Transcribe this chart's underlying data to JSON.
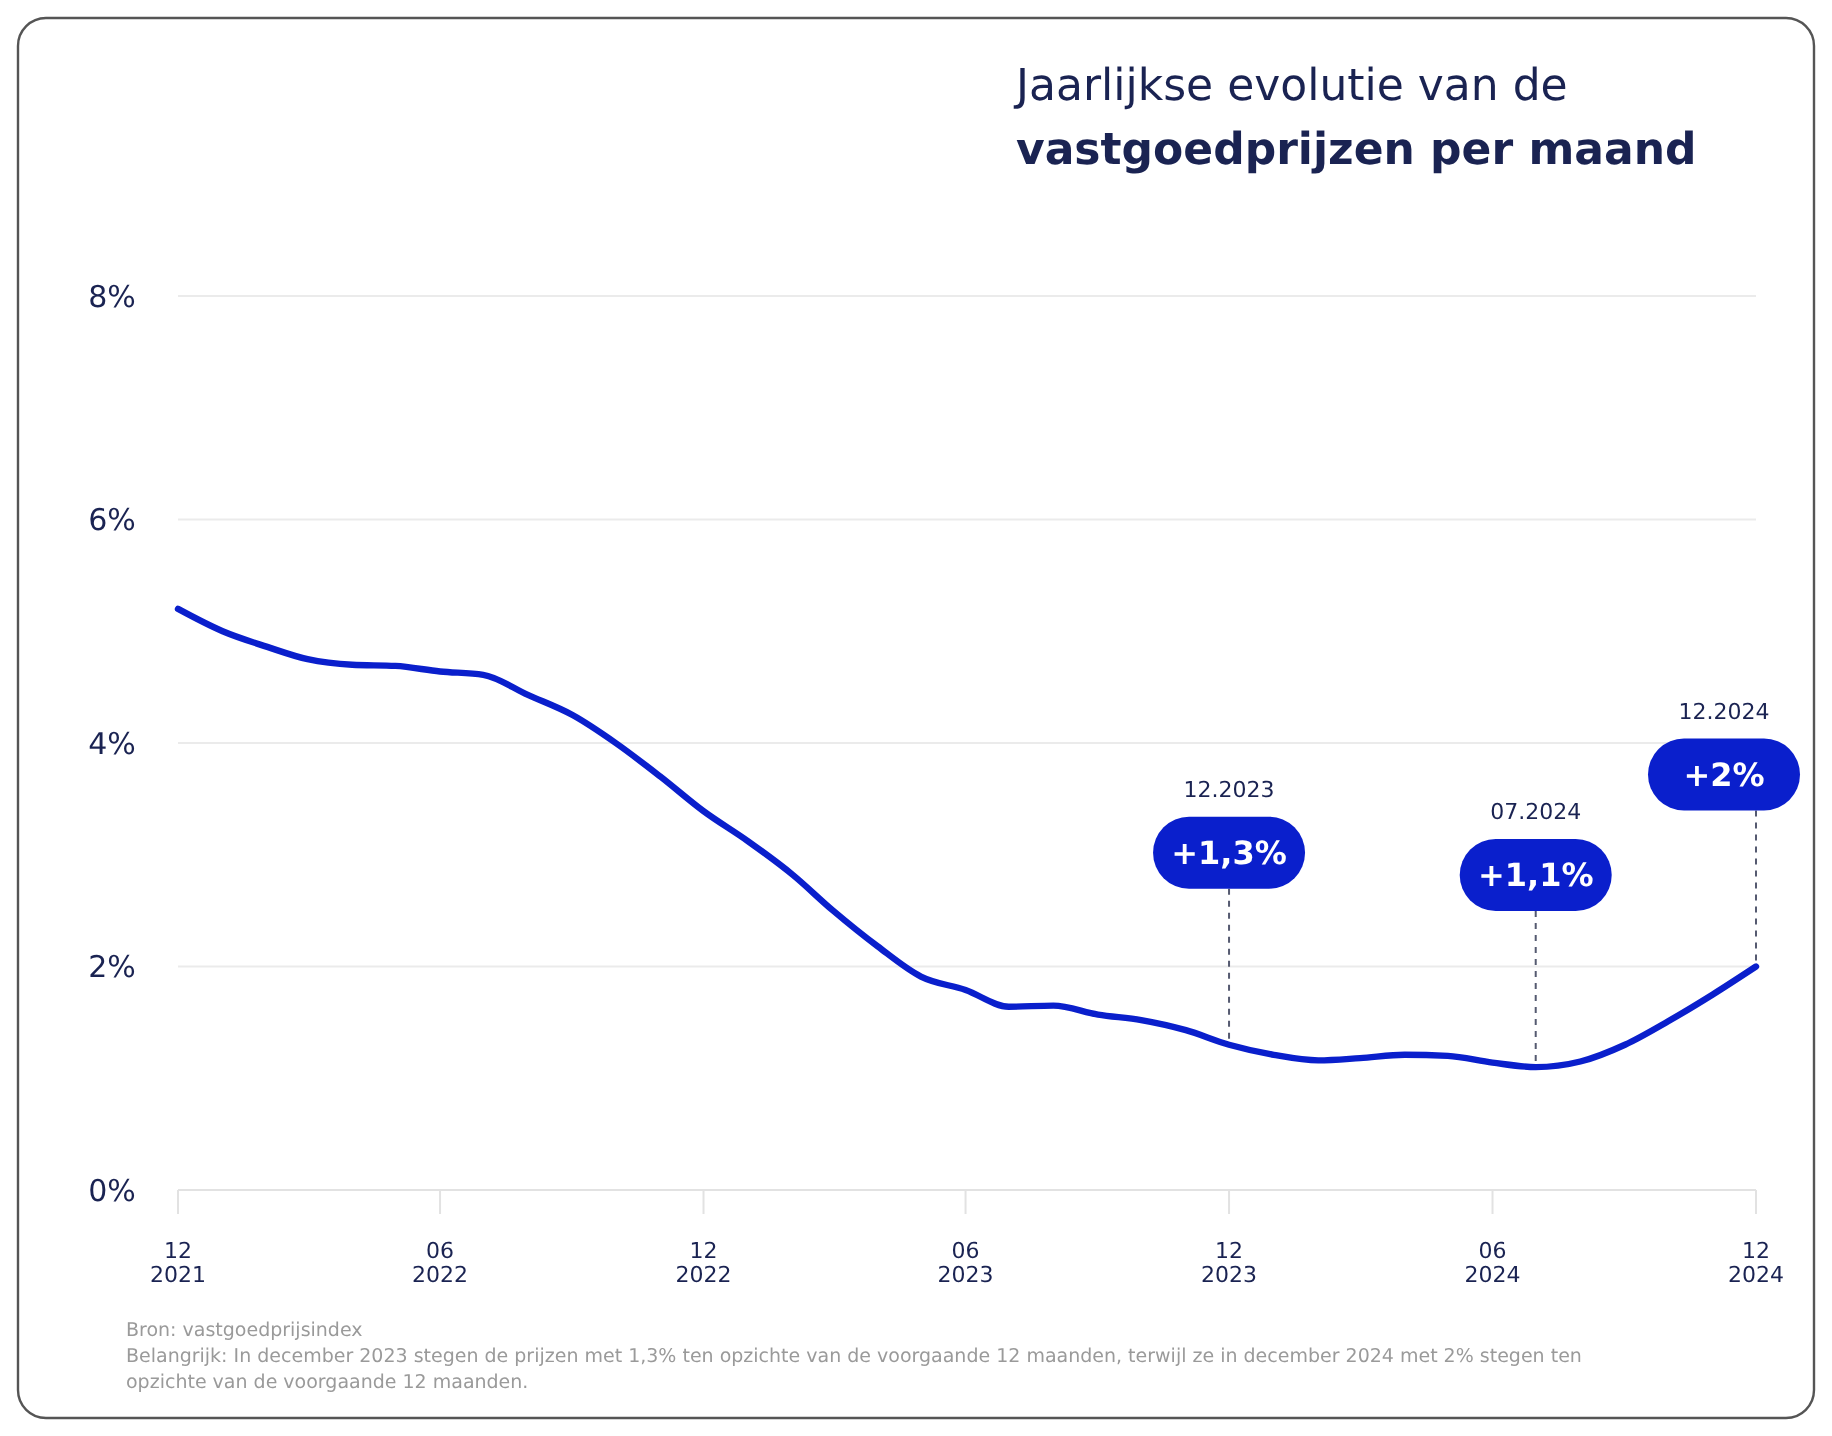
{
  "chart_data": {
    "type": "line",
    "title": "Jaarlijkse evolutie van de\nvastgoedprijzen per maand",
    "x": [
      "2021-12",
      "2022-01",
      "2022-02",
      "2022-03",
      "2022-04",
      "2022-05",
      "2022-06",
      "2022-07",
      "2022-08",
      "2022-09",
      "2022-10",
      "2022-11",
      "2022-12",
      "2023-01",
      "2023-02",
      "2023-03",
      "2023-04",
      "2023-05",
      "2023-06",
      "2023-07",
      "2023-08",
      "2023-09",
      "2023-10",
      "2023-11",
      "2023-12",
      "2024-01",
      "2024-02",
      "2024-03",
      "2024-04",
      "2024-05",
      "2024-06",
      "2024-07",
      "2024-08",
      "2024-09",
      "2024-10",
      "2024-11",
      "2024-12"
    ],
    "series": [
      {
        "color": "#0a1fcc",
        "values": [
          5.2,
          5.0,
          4.86,
          4.75,
          4.7,
          4.69,
          4.64,
          4.61,
          4.43,
          4.25,
          4.0,
          3.7,
          3.39,
          3.12,
          2.82,
          2.5,
          2.18,
          1.91,
          1.79,
          1.64,
          1.65,
          1.57,
          1.52,
          1.43,
          1.3,
          1.21,
          1.16,
          1.18,
          1.21,
          1.2,
          1.14,
          1.1,
          1.15,
          1.3,
          1.51,
          1.75,
          2.0
        ]
      }
    ],
    "xlim": [
      "2021-12",
      "2024-12"
    ],
    "xticks": [
      {
        "value": "2021-12",
        "label": "12\n2021"
      },
      {
        "value": "2022-06",
        "label": "06\n2022"
      },
      {
        "value": "2022-12",
        "label": "12\n2022"
      },
      {
        "value": "2023-06",
        "label": "06\n2023"
      },
      {
        "value": "2023-12",
        "label": "12\n2023"
      },
      {
        "value": "2024-06",
        "label": "06\n2024"
      },
      {
        "value": "2024-12",
        "label": "12\n2024"
      }
    ],
    "ylim": [
      0,
      8
    ],
    "yticks": [
      {
        "value": 0,
        "label": "0%"
      },
      {
        "value": 2,
        "label": "2%"
      },
      {
        "value": 4,
        "label": "4%"
      },
      {
        "value": 6,
        "label": "6%"
      },
      {
        "value": 8,
        "label": "8%"
      }
    ],
    "grid": "y",
    "marker": "none",
    "line_style": "solid",
    "annotations": [
      "12.2023",
      "07.2024",
      "12.2024",
      {
        "text": "+1,3%",
        "x": "2023-12",
        "y": 1.3
      },
      {
        "text": "+1,1%",
        "x": "2024-07",
        "y": 1.1
      },
      {
        "text": "+2%",
        "x": "2024-12",
        "y": 2.0
      },
      "Bron: vastgoedprijsindex",
      "Belangrijk: In december 2023 stegen de prijzen met 1,3% ten opzichte van de voorgaande 12 maanden, terwijl ze in december 2024 met 2% stegen ten opzichte van de voorgaande 12 maanden."
    ]
  }
}
